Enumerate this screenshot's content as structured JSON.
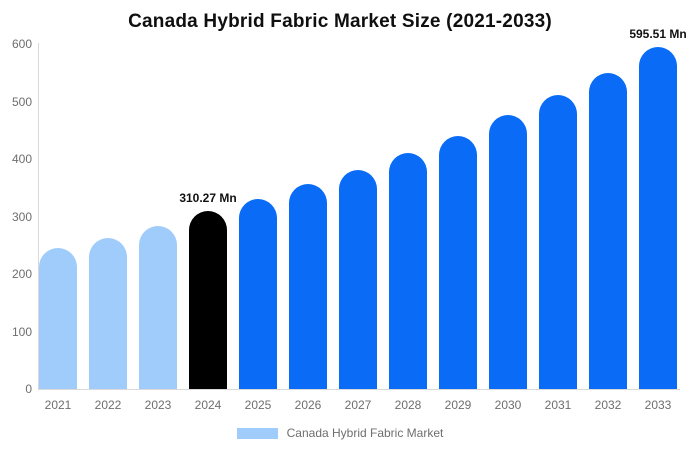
{
  "title": "Canada Hybrid Fabric Market Size (2021-2033)",
  "colors": {
    "bar_primary": "#0a6cf6",
    "bar_light": "#9fccfb",
    "bar_highlight": "#000000",
    "axis_line": "#d9d9d9",
    "axis_text": "#6e6e6e",
    "value_label_text": "#111111"
  },
  "chart_data": {
    "type": "bar",
    "title": "Canada Hybrid Fabric Market Size (2021-2033)",
    "categories": [
      "2021",
      "2022",
      "2023",
      "2024",
      "2025",
      "2026",
      "2027",
      "2028",
      "2029",
      "2030",
      "2031",
      "2032",
      "2033"
    ],
    "values": [
      245,
      263,
      284,
      310.27,
      330,
      356,
      381,
      410,
      440,
      477,
      512,
      550,
      595.51
    ],
    "unit": "Mn",
    "bar_colors": [
      "#9fccfb",
      "#9fccfb",
      "#9fccfb",
      "#000000",
      "#0a6cf6",
      "#0a6cf6",
      "#0a6cf6",
      "#0a6cf6",
      "#0a6cf6",
      "#0a6cf6",
      "#0a6cf6",
      "#0a6cf6",
      "#0a6cf6"
    ],
    "data_labels": [
      {
        "index": 3,
        "text": "310.27 Mn"
      },
      {
        "index": 12,
        "text": "595.51 Mn"
      }
    ],
    "xlabel": "",
    "ylabel": "",
    "ylim": [
      0,
      600
    ],
    "yticks": [
      0,
      100,
      200,
      300,
      400,
      500,
      600
    ],
    "grid": false,
    "legend_position": "bottom",
    "legend": {
      "swatch_color": "#9fccfb",
      "label": "Canada Hybrid Fabric Market"
    }
  }
}
